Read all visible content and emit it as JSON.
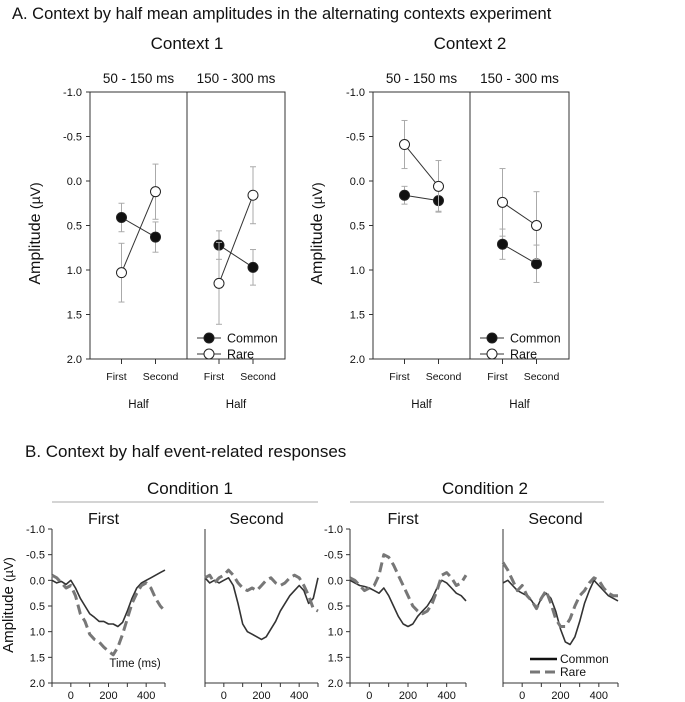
{
  "panel_a_title": "A. Context by half mean amplitudes in the alternating contexts experiment",
  "panel_b_title": "B. Context by half event-related responses",
  "chart_data": [
    {
      "type": "line",
      "panel": "A",
      "title": "Context 1",
      "ylabel": "Amplitude (µV)",
      "ylim": [
        -1.0,
        2.0
      ],
      "y_inverted": true,
      "yticks": [
        "-1.0",
        "-0.5",
        "0.0",
        "0.5",
        "1.0",
        "1.5",
        "2.0"
      ],
      "xlabel": "Half",
      "subpanels": [
        {
          "title": "50 - 150 ms",
          "categories": [
            "First",
            "Second"
          ],
          "series": [
            {
              "name": "Common",
              "values": [
                0.41,
                0.63
              ],
              "errors": [
                0.16,
                0.17
              ]
            },
            {
              "name": "Rare",
              "values": [
                1.03,
                0.12
              ],
              "errors": [
                0.33,
                0.31
              ]
            }
          ]
        },
        {
          "title": "150 - 300 ms",
          "categories": [
            "First",
            "Second"
          ],
          "series": [
            {
              "name": "Common",
              "values": [
                0.72,
                0.97
              ],
              "errors": [
                0.16,
                0.2
              ]
            },
            {
              "name": "Rare",
              "values": [
                1.15,
                0.16
              ],
              "errors": [
                0.46,
                0.32
              ]
            }
          ]
        }
      ],
      "legend": [
        "Common",
        "Rare"
      ]
    },
    {
      "type": "line",
      "panel": "A",
      "title": "Context 2",
      "ylabel": "Amplitude (µV)",
      "ylim": [
        -1.0,
        2.0
      ],
      "y_inverted": true,
      "yticks": [
        "-1.0",
        "-0.5",
        "0.0",
        "0.5",
        "1.0",
        "1.5",
        "2.0"
      ],
      "xlabel": "Half",
      "subpanels": [
        {
          "title": "50 - 150 ms",
          "categories": [
            "First",
            "Second"
          ],
          "series": [
            {
              "name": "Common",
              "values": [
                0.16,
                0.22
              ],
              "errors": [
                0.1,
                0.12
              ]
            },
            {
              "name": "Rare",
              "values": [
                -0.41,
                0.06
              ],
              "errors": [
                0.27,
                0.29
              ]
            }
          ]
        },
        {
          "title": "150 - 300 ms",
          "categories": [
            "First",
            "Second"
          ],
          "series": [
            {
              "name": "Common",
              "values": [
                0.71,
                0.93
              ],
              "errors": [
                0.17,
                0.21
              ]
            },
            {
              "name": "Rare",
              "values": [
                0.24,
                0.5
              ],
              "errors": [
                0.38,
                0.38
              ]
            }
          ]
        }
      ],
      "legend": [
        "Common",
        "Rare"
      ]
    },
    {
      "type": "line",
      "panel": "B",
      "group_title": "Condition 1",
      "ylabel": "Amplitude (µV)",
      "ylim": [
        -1.0,
        2.0
      ],
      "y_inverted": true,
      "xlim": [
        -100,
        500
      ],
      "xticks": [
        "0",
        "200",
        "400"
      ],
      "yticks": [
        "-1.0",
        "-0.5",
        "0.0",
        "0.5",
        "1.0",
        "1.5",
        "2.0"
      ],
      "annotation": "Time (ms)",
      "subplots": [
        {
          "title": "First",
          "x": [
            -100,
            -75,
            -50,
            -25,
            0,
            25,
            50,
            75,
            100,
            125,
            150,
            175,
            200,
            225,
            250,
            275,
            300,
            325,
            350,
            375,
            400,
            425,
            450,
            475,
            500
          ],
          "series": [
            {
              "name": "Common",
              "values": [
                0.0,
                0.05,
                0.02,
                0.08,
                0.0,
                0.15,
                0.35,
                0.5,
                0.65,
                0.72,
                0.8,
                0.8,
                0.85,
                0.85,
                0.9,
                0.82,
                0.6,
                0.35,
                0.15,
                0.05,
                0.0,
                -0.05,
                -0.1,
                -0.15,
                -0.2
              ]
            },
            {
              "name": "Rare",
              "values": [
                -0.1,
                -0.05,
                0.05,
                0.15,
                0.1,
                0.3,
                0.65,
                0.8,
                1.05,
                1.15,
                1.2,
                1.3,
                1.38,
                1.45,
                1.3,
                1.05,
                0.75,
                0.45,
                0.25,
                0.1,
                0.05,
                0.15,
                0.35,
                0.5,
                0.6
              ]
            }
          ]
        },
        {
          "title": "Second",
          "x": [
            -100,
            -75,
            -50,
            -25,
            0,
            25,
            50,
            75,
            100,
            125,
            150,
            175,
            200,
            225,
            250,
            275,
            300,
            325,
            350,
            375,
            400,
            425,
            450,
            475,
            500
          ],
          "series": [
            {
              "name": "Common",
              "values": [
                -0.05,
                0.05,
                0.0,
                0.05,
                0.0,
                -0.05,
                0.1,
                0.45,
                0.85,
                1.0,
                1.05,
                1.1,
                1.15,
                1.1,
                0.95,
                0.8,
                0.6,
                0.45,
                0.3,
                0.2,
                0.1,
                0.2,
                0.45,
                0.35,
                -0.05
              ]
            },
            {
              "name": "Rare",
              "values": [
                -0.05,
                -0.1,
                0.05,
                -0.05,
                -0.1,
                -0.2,
                -0.1,
                0.05,
                0.15,
                0.2,
                0.15,
                0.2,
                0.1,
                0.0,
                -0.05,
                0.05,
                0.1,
                0.05,
                -0.05,
                -0.1,
                -0.05,
                0.1,
                0.3,
                0.55,
                0.6
              ]
            }
          ]
        }
      ]
    },
    {
      "type": "line",
      "panel": "B",
      "group_title": "Condition 2",
      "ylim": [
        -1.0,
        2.0
      ],
      "y_inverted": true,
      "xlim": [
        -100,
        500
      ],
      "xticks": [
        "0",
        "200",
        "400"
      ],
      "yticks": [
        "-1.0",
        "-0.5",
        "0.0",
        "0.5",
        "1.0",
        "1.5",
        "2.0"
      ],
      "legend": [
        "Common",
        "Rare"
      ],
      "subplots": [
        {
          "title": "First",
          "x": [
            -100,
            -75,
            -50,
            -25,
            0,
            25,
            50,
            75,
            100,
            125,
            150,
            175,
            200,
            225,
            250,
            275,
            300,
            325,
            350,
            375,
            400,
            425,
            450,
            475,
            500
          ],
          "series": [
            {
              "name": "Common",
              "values": [
                0.0,
                0.05,
                0.1,
                0.12,
                0.15,
                0.2,
                0.25,
                0.15,
                0.3,
                0.5,
                0.7,
                0.85,
                0.9,
                0.85,
                0.7,
                0.6,
                0.5,
                0.35,
                0.15,
                0.0,
                0.05,
                0.15,
                0.25,
                0.3,
                0.4
              ]
            },
            {
              "name": "Rare",
              "values": [
                -0.05,
                0.0,
                0.1,
                0.2,
                0.15,
                0.1,
                -0.1,
                -0.5,
                -0.45,
                -0.3,
                -0.1,
                0.1,
                0.3,
                0.5,
                0.6,
                0.65,
                0.6,
                0.45,
                0.2,
                -0.1,
                -0.15,
                -0.05,
                0.1,
                0.05,
                -0.1
              ]
            }
          ]
        },
        {
          "title": "Second",
          "x": [
            -100,
            -75,
            -50,
            -25,
            0,
            25,
            50,
            75,
            100,
            125,
            150,
            175,
            200,
            225,
            250,
            275,
            300,
            325,
            350,
            375,
            400,
            425,
            450,
            475,
            500
          ],
          "series": [
            {
              "name": "Common",
              "values": [
                0.05,
                0.0,
                0.1,
                0.2,
                0.25,
                0.3,
                0.4,
                0.55,
                0.35,
                0.25,
                0.35,
                0.6,
                0.95,
                1.2,
                1.25,
                1.1,
                0.8,
                0.45,
                0.2,
                0.0,
                0.1,
                0.2,
                0.3,
                0.35,
                0.4
              ]
            },
            {
              "name": "Rare",
              "values": [
                -0.35,
                -0.2,
                0.0,
                0.2,
                0.1,
                0.3,
                0.4,
                0.55,
                0.35,
                0.2,
                0.45,
                0.75,
                0.9,
                0.9,
                0.75,
                0.5,
                0.3,
                0.2,
                0.05,
                -0.05,
                0.0,
                0.15,
                0.25,
                0.3,
                0.3
              ]
            }
          ]
        }
      ]
    }
  ]
}
